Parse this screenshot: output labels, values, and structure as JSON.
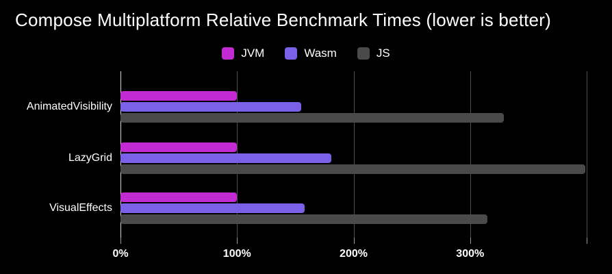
{
  "title": "Compose Multiplatform Relative Benchmark Times (lower is better)",
  "colors": {
    "background": "#000000",
    "text": "#ffffff",
    "gridline": "#4f4f4f",
    "axis_line": "#d9d9d9",
    "jvm": "#c22bd2",
    "wasm": "#7b61e8",
    "js": "#4a4a4a"
  },
  "legend": {
    "position": "top-center",
    "items": [
      {
        "label": "JVM",
        "color": "#c22bd2"
      },
      {
        "label": "Wasm",
        "color": "#7b61e8"
      },
      {
        "label": "JS",
        "color": "#4a4a4a"
      }
    ]
  },
  "chart_data": {
    "type": "bar",
    "orientation": "horizontal",
    "title": "Compose Multiplatform Relative Benchmark Times (lower is better)",
    "categories": [
      "AnimatedVisibility",
      "LazyGrid",
      "VisualEffects"
    ],
    "series": [
      {
        "name": "JVM",
        "color": "#c22bd2",
        "values": [
          100,
          100,
          100
        ]
      },
      {
        "name": "Wasm",
        "color": "#7b61e8",
        "values": [
          155,
          181,
          158
        ]
      },
      {
        "name": "JS",
        "color": "#4a4a4a",
        "values": [
          329,
          399,
          315
        ]
      }
    ],
    "unit": "%",
    "xlim": [
      0,
      400
    ],
    "ticks": [
      {
        "pct": 0,
        "label": "0%"
      },
      {
        "pct": 100,
        "label": "100%"
      },
      {
        "pct": 200,
        "label": "200%"
      },
      {
        "pct": 300,
        "label": "300%"
      },
      {
        "pct": 400,
        "label": ""
      }
    ],
    "grid": true,
    "legend_position": "top"
  }
}
